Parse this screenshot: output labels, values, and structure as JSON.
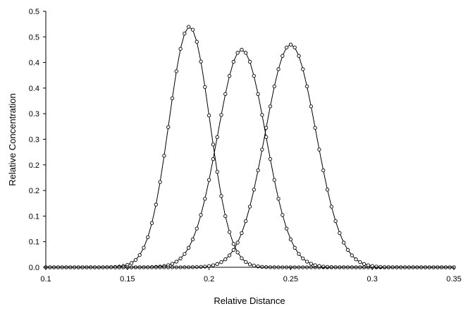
{
  "chart_data": {
    "type": "line",
    "title": "",
    "xlabel": "Relative Distance",
    "ylabel": "Relative Concentration",
    "xlim": [
      0.1,
      0.35
    ],
    "ylim": [
      0.0,
      0.5
    ],
    "xticks": [
      "0.1",
      "0.15",
      "0.2",
      "0.25",
      "0.3",
      "0.35"
    ],
    "yticks": [
      "0.0",
      "0.1",
      "0.1",
      "0.2",
      "0.2",
      "0.3",
      "0.3",
      "0.4",
      "0.4",
      "0.5",
      "0.5"
    ],
    "ytick_values": [
      0.0,
      0.05,
      0.1,
      0.15,
      0.2,
      0.25,
      0.3,
      0.35,
      0.4,
      0.45,
      0.5
    ],
    "grid": false,
    "legend": "none",
    "marker": "open-circle",
    "color": "#000000",
    "series": [
      {
        "peak_x": 0.188,
        "peak_y": 0.47,
        "sigma": 0.0125
      },
      {
        "peak_x": 0.22,
        "peak_y": 0.425,
        "sigma": 0.0148
      },
      {
        "peak_x": 0.25,
        "peak_y": 0.435,
        "sigma": 0.0155
      }
    ],
    "sample_x": {
      "start": 0.1,
      "end": 0.35,
      "step": 0.0025
    }
  }
}
